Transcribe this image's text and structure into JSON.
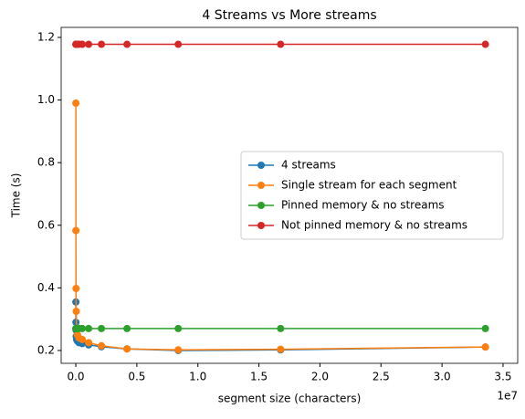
{
  "chart_data": {
    "type": "line",
    "title": "4 Streams vs More streams",
    "x_label": "segment size (characters)",
    "y_label": "Time (s)",
    "x_offset_label": "1e7",
    "x": [
      4096,
      8192,
      16384,
      32768,
      65536,
      131072,
      262144,
      524288,
      1048576,
      2097152,
      4194304,
      8388608,
      16777216,
      33554432
    ],
    "series": [
      {
        "name": "4 streams",
        "color": "#1f77b4",
        "values": [
          0.355,
          0.29,
          0.265,
          0.245,
          0.235,
          0.23,
          0.225,
          0.222,
          0.218,
          0.212,
          0.205,
          0.2,
          0.202,
          0.211
        ]
      },
      {
        "name": "Single stream for each segment",
        "color": "#ff7f0e",
        "values": [
          0.99,
          0.583,
          0.398,
          0.325,
          0.27,
          0.25,
          0.24,
          0.235,
          0.225,
          0.215,
          0.205,
          0.202,
          0.204,
          0.211
        ]
      },
      {
        "name": "Pinned memory & no streams",
        "color": "#2ca02c",
        "values": [
          0.27,
          0.27,
          0.27,
          0.27,
          0.27,
          0.27,
          0.27,
          0.27,
          0.27,
          0.27,
          0.27,
          0.27,
          0.27,
          0.27
        ]
      },
      {
        "name": "Not pinned memory & no streams",
        "color": "#d62728",
        "values": [
          1.178,
          1.178,
          1.178,
          1.178,
          1.178,
          1.178,
          1.178,
          1.178,
          1.178,
          1.178,
          1.178,
          1.178,
          1.178,
          1.178
        ]
      }
    ],
    "xlim": [
      -1200000,
      36200000
    ],
    "xticks": [
      {
        "value": 0,
        "label": "0.0"
      },
      {
        "value": 5000000,
        "label": "0.5"
      },
      {
        "value": 10000000,
        "label": "1.0"
      },
      {
        "value": 15000000,
        "label": "1.5"
      },
      {
        "value": 20000000,
        "label": "2.0"
      },
      {
        "value": 25000000,
        "label": "2.5"
      },
      {
        "value": 30000000,
        "label": "3.0"
      },
      {
        "value": 35000000,
        "label": "3.5"
      }
    ],
    "ylim": [
      0.159,
      1.232
    ],
    "yticks": [
      0.2,
      0.4,
      0.6,
      0.8,
      {
        "value": 1,
        "label": "1.0"
      },
      1.2
    ],
    "grid": false,
    "legend": "center right"
  }
}
